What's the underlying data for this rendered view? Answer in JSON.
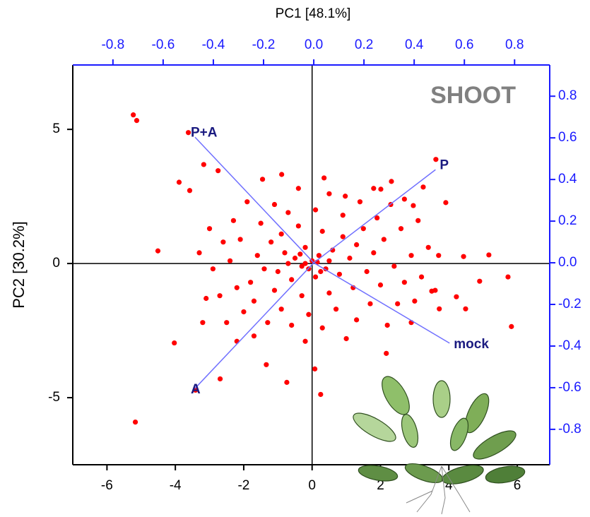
{
  "chart_data": {
    "type": "biplot",
    "title": "PC1 [48.1%]",
    "y_label": "PC2 [30.2%]",
    "annotation": "SHOOT",
    "xlim": [
      -7,
      6.95
    ],
    "ylim": [
      -7.5,
      7.4
    ],
    "xticks": [
      -6,
      -4,
      -2,
      0,
      2,
      4,
      6
    ],
    "yticks": [
      -5,
      0,
      5
    ],
    "x2lim": [
      -0.96,
      0.94
    ],
    "y2lim": [
      -0.97,
      0.95
    ],
    "x2ticks": [
      -0.8,
      -0.6,
      -0.4,
      -0.2,
      {
        "value": 0,
        "label": "0.0"
      },
      0.2,
      0.4,
      0.6,
      0.8
    ],
    "y2ticks": [
      -0.8,
      -0.6,
      -0.4,
      -0.2,
      {
        "value": 0,
        "label": "0.0"
      },
      0.2,
      0.4,
      0.6,
      0.8
    ],
    "secondary_axis_color": "#1a1aff",
    "series": [
      {
        "color": "#ff0000",
        "x": [
          -5.23,
          -5.13,
          -3.62,
          -3.17,
          -2.75,
          -3.89,
          -3.58,
          -4.51,
          -4.03,
          -5.17,
          -3.41,
          -2.69,
          -1.34,
          -0.74,
          0.25,
          0.08,
          3.62,
          3.91,
          3.25,
          2.17,
          4.43,
          5.17,
          5.73,
          5.83,
          4.9,
          3.5,
          3.72,
          4.49,
          4.22,
          -1.45,
          -0.89,
          0.35,
          0.97,
          2.01,
          2.32,
          2.96,
          -0.5,
          -0.3,
          -0.8,
          -1.0,
          0.2,
          0.4,
          -0.2,
          -0.6,
          0.1,
          0.6,
          -1.2,
          -1.4,
          -0.9,
          0.8,
          1.1,
          1.3,
          0.9,
          -0.4,
          0.3,
          -1.6,
          -1.8,
          -1.1,
          -0.3,
          0.5,
          1.2,
          1.6,
          1.8,
          1.5,
          2.1,
          2.4,
          2.0,
          1.7,
          0.7,
          -0.1,
          -0.9,
          -1.7,
          -2.2,
          -2.4,
          -2.1,
          -1.5,
          -0.7,
          0.1,
          0.9,
          1.9,
          2.6,
          2.9,
          2.7,
          2.5,
          1.3,
          0.3,
          -0.6,
          -1.3,
          -2.0,
          -2.7,
          -2.9,
          -2.6,
          -2.3,
          -1.1,
          0.5,
          1.4,
          2.3,
          3.1,
          3.4,
          3.2,
          3.0,
          2.2,
          1.0,
          -0.2,
          -1.7,
          -2.5,
          -3.1,
          -3.3,
          -3.0,
          -1.9,
          -0.4,
          1.8,
          2.7,
          3.7,
          3.6,
          2.9,
          -3.2,
          -2.2,
          -0.2,
          0.0,
          -0.1,
          0.15,
          -0.35,
          0.25,
          -0.7,
          0.5
        ],
        "values": [
          5.54,
          5.33,
          4.88,
          3.69,
          3.46,
          3.03,
          2.72,
          0.47,
          -2.96,
          -5.91,
          -4.72,
          -4.3,
          -3.77,
          -4.43,
          -4.88,
          -3.93,
          3.88,
          2.27,
          2.85,
          -3.35,
          0.26,
          0.32,
          -0.5,
          -2.35,
          -0.66,
          -1.03,
          -1.69,
          -1.69,
          -1.24,
          3.14,
          3.32,
          3.19,
          2.51,
          2.77,
          3.06,
          2.16,
          0.2,
          -0.1,
          0.4,
          -0.3,
          0.3,
          -0.2,
          0.6,
          -0.6,
          -0.5,
          0.5,
          0.8,
          -0.2,
          1.1,
          -0.4,
          0.2,
          0.7,
          1.0,
          1.4,
          1.2,
          0.3,
          -0.7,
          -1.0,
          -1.2,
          -1.1,
          -0.9,
          -0.3,
          0.4,
          1.3,
          0.9,
          -0.1,
          -0.8,
          -1.5,
          -1.7,
          -1.9,
          -1.7,
          -1.4,
          -0.9,
          0.1,
          0.9,
          1.5,
          1.9,
          2.0,
          1.8,
          1.7,
          1.3,
          0.3,
          -0.7,
          -1.5,
          -2.1,
          -2.4,
          -2.3,
          -2.2,
          -1.8,
          -1.2,
          -0.2,
          0.8,
          1.6,
          2.2,
          2.6,
          2.3,
          2.2,
          1.6,
          0.6,
          -0.5,
          -1.4,
          -2.3,
          -2.8,
          -2.9,
          -2.7,
          -2.2,
          -1.3,
          0.4,
          1.3,
          2.3,
          2.8,
          2.8,
          2.4,
          0.3,
          -1.0,
          -2.2,
          -2.2,
          -2.9,
          0.0,
          0.1,
          -0.2,
          0.05,
          0.35,
          -0.3,
          0.0,
          0.1
        ]
      }
    ],
    "loadings_color": "#7070ff",
    "loadings_label_color": "#1a1a80",
    "loadings": [
      {
        "label": "P",
        "x": 0.485,
        "y": 0.447
      },
      {
        "label": "P+A",
        "x": -0.473,
        "y": 0.603
      },
      {
        "label": "mock",
        "x": 0.541,
        "y": -0.386
      },
      {
        "label": "A",
        "x": -0.473,
        "y": -0.603
      }
    ]
  }
}
